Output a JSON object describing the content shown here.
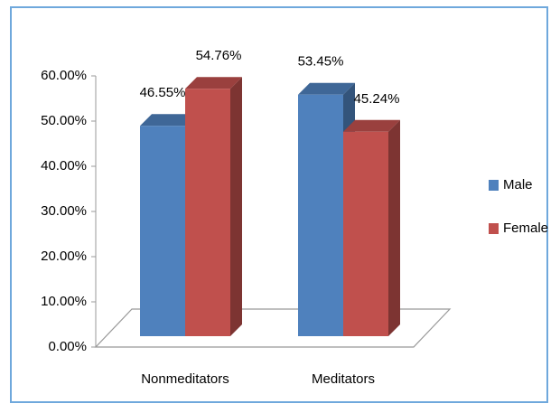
{
  "chart_data": {
    "type": "bar3d",
    "categories": [
      "Nonmeditators",
      "Meditators"
    ],
    "series": [
      {
        "name": "Male",
        "color": "#4f81bd",
        "values": [
          46.55,
          53.45
        ],
        "value_labels": [
          "46.55%",
          "53.45%"
        ]
      },
      {
        "name": "Female",
        "color": "#c0504d",
        "values": [
          54.76,
          45.24
        ],
        "value_labels": [
          "54.76%",
          "45.24%"
        ]
      }
    ],
    "ylim": [
      0,
      60
    ],
    "yticks": [
      {
        "value": 0,
        "label": "0.00%"
      },
      {
        "value": 10,
        "label": "10.00%"
      },
      {
        "value": 20,
        "label": "20.00%"
      },
      {
        "value": 30,
        "label": "30.00%"
      },
      {
        "value": 40,
        "label": "40.00%"
      },
      {
        "value": 50,
        "label": "50.00%"
      },
      {
        "value": 60,
        "label": "60.00%"
      }
    ],
    "legend": "right"
  }
}
